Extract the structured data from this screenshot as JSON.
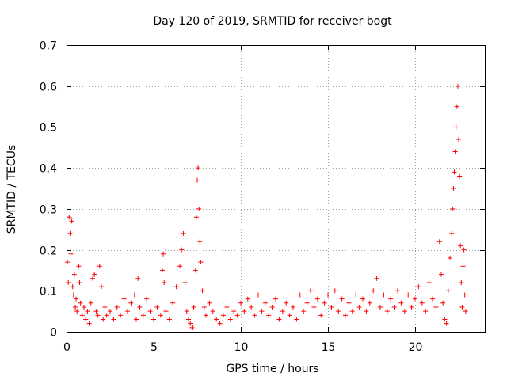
{
  "chart_data": {
    "type": "scatter",
    "title": "Day 120 of 2019, SRMTID for receiver bogt",
    "xlabel": "GPS time / hours",
    "ylabel": "SRMTID / TECUs",
    "xlim": [
      0,
      24
    ],
    "ylim": [
      0,
      0.7
    ],
    "xticks": [
      0,
      5,
      10,
      15,
      20
    ],
    "yticks": [
      0,
      0.1,
      0.2,
      0.3,
      0.4,
      0.5,
      0.6,
      0.7
    ],
    "ytick_labels": [
      "0",
      "0.1",
      "0.2",
      "0.3",
      "0.4",
      "0.5",
      "0.6",
      "0.7"
    ],
    "grid": true,
    "marker": "+",
    "color": "#ff0000",
    "series": [
      {
        "name": "SRMTID",
        "points": [
          [
            0.05,
            0.17
          ],
          [
            0.1,
            0.12
          ],
          [
            0.15,
            0.28
          ],
          [
            0.2,
            0.24
          ],
          [
            0.25,
            0.19
          ],
          [
            0.3,
            0.27
          ],
          [
            0.35,
            0.11
          ],
          [
            0.4,
            0.09
          ],
          [
            0.45,
            0.14
          ],
          [
            0.5,
            0.06
          ],
          [
            0.55,
            0.08
          ],
          [
            0.6,
            0.05
          ],
          [
            0.7,
            0.16
          ],
          [
            0.75,
            0.12
          ],
          [
            0.8,
            0.07
          ],
          [
            0.9,
            0.04
          ],
          [
            1.0,
            0.06
          ],
          [
            1.1,
            0.03
          ],
          [
            1.2,
            0.05
          ],
          [
            1.3,
            0.02
          ],
          [
            1.4,
            0.07
          ],
          [
            1.5,
            0.13
          ],
          [
            1.6,
            0.14
          ],
          [
            1.7,
            0.05
          ],
          [
            1.8,
            0.04
          ],
          [
            1.9,
            0.16
          ],
          [
            2.0,
            0.11
          ],
          [
            2.1,
            0.03
          ],
          [
            2.2,
            0.06
          ],
          [
            2.3,
            0.04
          ],
          [
            2.5,
            0.05
          ],
          [
            2.7,
            0.03
          ],
          [
            2.9,
            0.06
          ],
          [
            3.1,
            0.04
          ],
          [
            3.3,
            0.08
          ],
          [
            3.5,
            0.05
          ],
          [
            3.7,
            0.07
          ],
          [
            3.9,
            0.09
          ],
          [
            4.0,
            0.03
          ],
          [
            4.1,
            0.13
          ],
          [
            4.2,
            0.06
          ],
          [
            4.4,
            0.04
          ],
          [
            4.6,
            0.08
          ],
          [
            4.8,
            0.05
          ],
          [
            5.0,
            0.03
          ],
          [
            5.2,
            0.06
          ],
          [
            5.4,
            0.04
          ],
          [
            5.5,
            0.15
          ],
          [
            5.55,
            0.19
          ],
          [
            5.6,
            0.12
          ],
          [
            5.7,
            0.05
          ],
          [
            5.9,
            0.03
          ],
          [
            6.1,
            0.07
          ],
          [
            6.3,
            0.11
          ],
          [
            6.5,
            0.16
          ],
          [
            6.6,
            0.2
          ],
          [
            6.7,
            0.24
          ],
          [
            6.8,
            0.12
          ],
          [
            6.9,
            0.05
          ],
          [
            7.0,
            0.03
          ],
          [
            7.1,
            0.02
          ],
          [
            7.2,
            0.01
          ],
          [
            7.3,
            0.06
          ],
          [
            7.4,
            0.15
          ],
          [
            7.45,
            0.28
          ],
          [
            7.5,
            0.37
          ],
          [
            7.55,
            0.4
          ],
          [
            7.6,
            0.3
          ],
          [
            7.65,
            0.22
          ],
          [
            7.7,
            0.17
          ],
          [
            7.8,
            0.1
          ],
          [
            7.9,
            0.06
          ],
          [
            8.0,
            0.04
          ],
          [
            8.2,
            0.07
          ],
          [
            8.4,
            0.05
          ],
          [
            8.6,
            0.03
          ],
          [
            8.8,
            0.02
          ],
          [
            9.0,
            0.04
          ],
          [
            9.2,
            0.06
          ],
          [
            9.4,
            0.03
          ],
          [
            9.6,
            0.05
          ],
          [
            9.8,
            0.04
          ],
          [
            10.0,
            0.07
          ],
          [
            10.2,
            0.05
          ],
          [
            10.4,
            0.08
          ],
          [
            10.6,
            0.06
          ],
          [
            10.8,
            0.04
          ],
          [
            11.0,
            0.09
          ],
          [
            11.2,
            0.05
          ],
          [
            11.4,
            0.07
          ],
          [
            11.6,
            0.04
          ],
          [
            11.8,
            0.06
          ],
          [
            12.0,
            0.08
          ],
          [
            12.2,
            0.03
          ],
          [
            12.4,
            0.05
          ],
          [
            12.6,
            0.07
          ],
          [
            12.8,
            0.04
          ],
          [
            13.0,
            0.06
          ],
          [
            13.2,
            0.03
          ],
          [
            13.4,
            0.09
          ],
          [
            13.6,
            0.05
          ],
          [
            13.8,
            0.07
          ],
          [
            14.0,
            0.1
          ],
          [
            14.2,
            0.06
          ],
          [
            14.4,
            0.08
          ],
          [
            14.6,
            0.04
          ],
          [
            14.8,
            0.07
          ],
          [
            15.0,
            0.09
          ],
          [
            15.2,
            0.06
          ],
          [
            15.4,
            0.1
          ],
          [
            15.6,
            0.05
          ],
          [
            15.8,
            0.08
          ],
          [
            16.0,
            0.04
          ],
          [
            16.2,
            0.07
          ],
          [
            16.4,
            0.05
          ],
          [
            16.6,
            0.09
          ],
          [
            16.8,
            0.06
          ],
          [
            17.0,
            0.08
          ],
          [
            17.2,
            0.05
          ],
          [
            17.4,
            0.07
          ],
          [
            17.6,
            0.1
          ],
          [
            17.8,
            0.13
          ],
          [
            18.0,
            0.06
          ],
          [
            18.2,
            0.09
          ],
          [
            18.4,
            0.05
          ],
          [
            18.6,
            0.08
          ],
          [
            18.8,
            0.06
          ],
          [
            19.0,
            0.1
          ],
          [
            19.2,
            0.07
          ],
          [
            19.4,
            0.05
          ],
          [
            19.6,
            0.09
          ],
          [
            19.8,
            0.06
          ],
          [
            20.0,
            0.08
          ],
          [
            20.2,
            0.11
          ],
          [
            20.4,
            0.07
          ],
          [
            20.6,
            0.05
          ],
          [
            20.8,
            0.12
          ],
          [
            21.0,
            0.08
          ],
          [
            21.2,
            0.06
          ],
          [
            21.4,
            0.22
          ],
          [
            21.5,
            0.14
          ],
          [
            21.6,
            0.07
          ],
          [
            21.7,
            0.03
          ],
          [
            21.8,
            0.02
          ],
          [
            21.9,
            0.1
          ],
          [
            22.0,
            0.18
          ],
          [
            22.1,
            0.24
          ],
          [
            22.15,
            0.3
          ],
          [
            22.2,
            0.35
          ],
          [
            22.25,
            0.39
          ],
          [
            22.3,
            0.44
          ],
          [
            22.35,
            0.5
          ],
          [
            22.4,
            0.55
          ],
          [
            22.45,
            0.6
          ],
          [
            22.5,
            0.47
          ],
          [
            22.55,
            0.38
          ],
          [
            22.6,
            0.21
          ],
          [
            22.65,
            0.12
          ],
          [
            22.7,
            0.06
          ],
          [
            22.75,
            0.16
          ],
          [
            22.8,
            0.2
          ],
          [
            22.85,
            0.09
          ],
          [
            22.9,
            0.05
          ]
        ]
      }
    ]
  }
}
